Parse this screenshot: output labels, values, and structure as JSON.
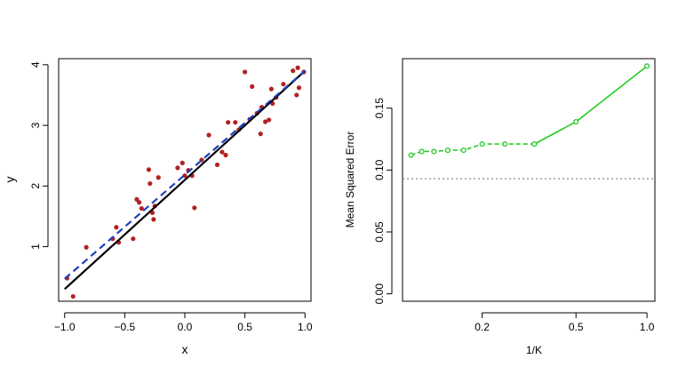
{
  "chart_data": [
    {
      "type": "scatter",
      "xlabel": "x",
      "ylabel": "y",
      "xlim": [
        -1.05,
        1.05
      ],
      "ylim": [
        0.1,
        4.1
      ],
      "x_ticks": [
        -1.0,
        -0.5,
        0.0,
        0.5,
        1.0
      ],
      "x_tick_labels": [
        "−1.0",
        "−0.5",
        "0.0",
        "0.5",
        "1.0"
      ],
      "y_ticks": [
        1,
        2,
        3,
        4
      ],
      "y_tick_labels": [
        "1",
        "2",
        "3",
        "4"
      ],
      "grid": false,
      "points_color": "#b22222",
      "points": [
        [
          -0.98,
          0.48
        ],
        [
          -0.93,
          0.18
        ],
        [
          -0.82,
          0.99
        ],
        [
          -0.6,
          1.13
        ],
        [
          -0.57,
          1.32
        ],
        [
          -0.55,
          1.07
        ],
        [
          -0.43,
          1.13
        ],
        [
          -0.4,
          1.78
        ],
        [
          -0.38,
          1.73
        ],
        [
          -0.36,
          1.63
        ],
        [
          -0.3,
          2.27
        ],
        [
          -0.29,
          2.04
        ],
        [
          -0.27,
          1.56
        ],
        [
          -0.26,
          1.45
        ],
        [
          -0.25,
          1.67
        ],
        [
          -0.22,
          2.14
        ],
        [
          -0.06,
          2.3
        ],
        [
          -0.02,
          2.38
        ],
        [
          0.0,
          2.17
        ],
        [
          0.03,
          2.26
        ],
        [
          0.06,
          2.17
        ],
        [
          0.08,
          1.64
        ],
        [
          0.14,
          2.43
        ],
        [
          0.2,
          2.84
        ],
        [
          0.27,
          2.35
        ],
        [
          0.31,
          2.56
        ],
        [
          0.34,
          2.51
        ],
        [
          0.36,
          3.05
        ],
        [
          0.42,
          3.05
        ],
        [
          0.45,
          2.93
        ],
        [
          0.5,
          3.88
        ],
        [
          0.54,
          3.1
        ],
        [
          0.56,
          3.64
        ],
        [
          0.6,
          3.2
        ],
        [
          0.63,
          2.86
        ],
        [
          0.64,
          3.3
        ],
        [
          0.67,
          3.06
        ],
        [
          0.7,
          3.09
        ],
        [
          0.72,
          3.6
        ],
        [
          0.73,
          3.36
        ],
        [
          0.76,
          3.46
        ],
        [
          0.82,
          3.68
        ],
        [
          0.9,
          3.9
        ],
        [
          0.93,
          3.5
        ],
        [
          0.94,
          3.95
        ],
        [
          0.95,
          3.62
        ],
        [
          0.99,
          3.88
        ]
      ],
      "true_line": {
        "color": "#000000",
        "style": "solid",
        "x": [
          -1.0,
          1.0
        ],
        "y": [
          0.3,
          3.9
        ]
      },
      "fit_line": {
        "color": "#1f3fbf",
        "style": "dashed",
        "x": [
          -1.0,
          1.0
        ],
        "y": [
          0.47,
          3.9
        ]
      }
    },
    {
      "type": "line",
      "xlabel": "1/K",
      "ylabel": "Mean Squared Error",
      "x_scale": "log",
      "xlim": [
        0.092,
        1.08
      ],
      "ylim": [
        -0.006,
        0.19
      ],
      "x_ticks": [
        0.2,
        0.5,
        1.0
      ],
      "x_tick_labels": [
        "0.2",
        "0.5",
        "1.0"
      ],
      "y_ticks": [
        0.0,
        0.05,
        0.1,
        0.15
      ],
      "y_tick_labels": [
        "0.00",
        "0.05",
        "0.10",
        "0.15"
      ],
      "grid": false,
      "series": [
        {
          "color": "#22cc22",
          "x": [
            0.1,
            0.111,
            0.125,
            0.143,
            0.167,
            0.2,
            0.25,
            0.333,
            0.5,
            1.0
          ],
          "y": [
            0.112,
            0.115,
            0.115,
            0.116,
            0.116,
            0.121,
            0.121,
            0.121,
            0.139,
            0.184
          ]
        }
      ],
      "reference_line": {
        "y": 0.093,
        "color": "#888888",
        "style": "dotted"
      }
    }
  ]
}
